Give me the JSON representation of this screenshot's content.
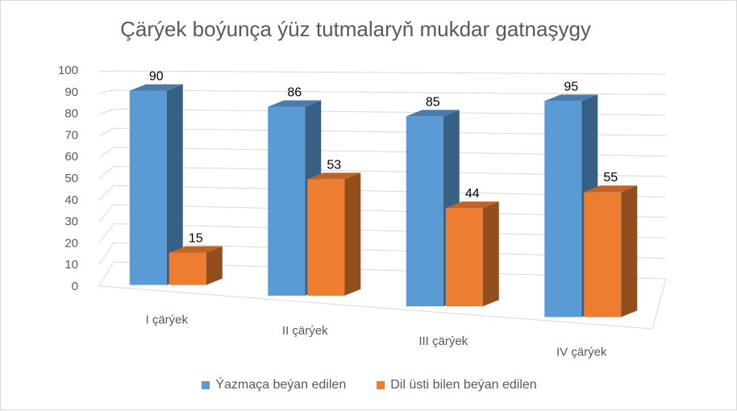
{
  "chart_data": {
    "type": "bar",
    "title": "Çärýek boýunça ýüz tutmalaryň mukdar gatnaşygy",
    "categories": [
      "I çärýek",
      "II çärýek",
      "III çärýek",
      "IV çärýek"
    ],
    "series": [
      {
        "name": "Ýazmaça beýan edilen",
        "values": [
          90,
          86,
          85,
          95
        ],
        "color": "#5B9BD5"
      },
      {
        "name": "Dil üsti bilen beýan edilen",
        "values": [
          15,
          53,
          44,
          55
        ],
        "color": "#ED7D31"
      }
    ],
    "ylim": [
      0,
      100
    ],
    "yticks": [
      "0",
      "10",
      "20",
      "30",
      "40",
      "50",
      "60",
      "70",
      "80",
      "90",
      "100"
    ],
    "grid": true,
    "legend_position": "bottom",
    "style": "3d-column"
  }
}
